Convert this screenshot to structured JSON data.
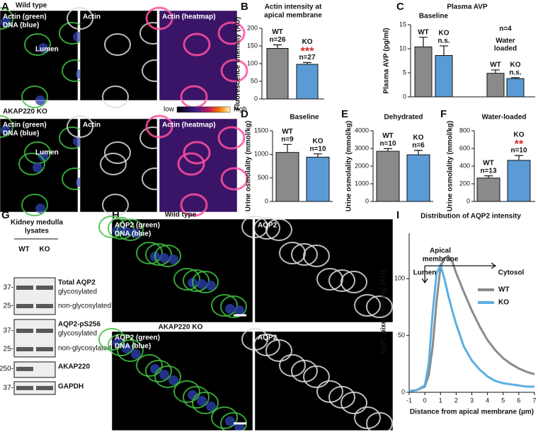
{
  "figure": {
    "panel_labels": [
      "A",
      "B",
      "C",
      "D",
      "E",
      "F",
      "G",
      "H",
      "I"
    ],
    "a": {
      "wt_title": "Wild type",
      "ko_title": "AKAP220 KO",
      "merge_label": [
        "Actin (green)",
        "DNA (blue)"
      ],
      "actin_label": "Actin",
      "heatmap_label": "Actin (heatmap)",
      "lumen": "Lumen",
      "scale_low": "low",
      "scale_high": "high"
    },
    "g": {
      "title": [
        "Kidney medulla",
        "lysates"
      ],
      "lanes": [
        "WT",
        "KO"
      ],
      "blots": [
        {
          "label": "Total AQP2",
          "bands": [
            "glycosylated",
            "non-glycosylated"
          ],
          "markers": [
            "37-",
            "25-"
          ]
        },
        {
          "label": "AQP2-pS256",
          "bands": [
            "glycosylated",
            "non-glycosylated"
          ],
          "markers": [
            "37-",
            "25-"
          ]
        },
        {
          "label": "AKAP220",
          "markers": [
            "250-"
          ]
        },
        {
          "label": "GAPDH",
          "markers": [
            "37-"
          ]
        }
      ]
    },
    "h": {
      "wt_title": "Wild type",
      "ko_title": "AKAP220 KO",
      "merge_label": [
        "AQP2 (green)",
        "DNA (blue)"
      ],
      "aqp2_label": "AQP2"
    }
  },
  "chart_data": [
    {
      "type": "bar",
      "title": [
        "Actin intensity at",
        "apical membrane"
      ],
      "ylabel": "Fluorescence intensity (AU)",
      "categories": [
        "WT",
        "KO"
      ],
      "values": [
        143,
        98
      ],
      "errors": [
        10,
        5
      ],
      "colors": [
        "#8a8a8a",
        "#5b9bd5"
      ],
      "n_labels": [
        "n=26",
        "n=27"
      ],
      "significance": [
        null,
        "***"
      ],
      "significance_color": "#d62728",
      "ylim": [
        0,
        200
      ],
      "yticks": [
        0,
        50,
        100,
        150,
        200
      ]
    },
    {
      "type": "bar",
      "title": [
        "Plasma AVP"
      ],
      "ylabel": "Plasma AVP (pg/ml)",
      "categories": [
        "WT",
        "KO",
        "WT",
        "KO"
      ],
      "values": [
        10.4,
        8.6,
        4.9,
        3.8
      ],
      "errors": [
        2,
        2,
        0.7,
        0.2
      ],
      "colors": [
        "#8a8a8a",
        "#5b9bd5",
        "#8a8a8a",
        "#5b9bd5"
      ],
      "group_labels": [
        [
          "Baseline"
        ],
        [
          "Water",
          "loaded"
        ]
      ],
      "note": "n=4",
      "significance": [
        null,
        "n.s.",
        null,
        "n.s."
      ],
      "significance_color": "#111111",
      "ylim": [
        0,
        15
      ],
      "yticks": [
        0,
        5,
        10,
        15
      ]
    },
    {
      "type": "bar",
      "title": [
        "Baseline"
      ],
      "ylabel": "Urine osmolality (mmol/kg)",
      "categories": [
        "WT",
        "KO"
      ],
      "values": [
        1040,
        940
      ],
      "errors": [
        170,
        70
      ],
      "colors": [
        "#8a8a8a",
        "#5b9bd5"
      ],
      "n_labels": [
        "n=9",
        "n=10"
      ],
      "ylim": [
        0,
        1500
      ],
      "yticks": [
        0,
        500,
        1000,
        1500
      ]
    },
    {
      "type": "bar",
      "title": [
        "Dehydrated"
      ],
      "ylabel": "Urine osmolality (mmol/kg)",
      "categories": [
        "WT",
        "KO"
      ],
      "values": [
        2840,
        2640
      ],
      "errors": [
        150,
        250
      ],
      "colors": [
        "#8a8a8a",
        "#5b9bd5"
      ],
      "n_labels": [
        "n=10",
        "n=6"
      ],
      "ylim": [
        0,
        4000
      ],
      "yticks": [
        0,
        1000,
        2000,
        3000,
        4000
      ]
    },
    {
      "type": "bar",
      "title": [
        "Water-loaded"
      ],
      "ylabel": "Urine osmolality (mmol/kg)",
      "categories": [
        "WT",
        "KO"
      ],
      "values": [
        265,
        465
      ],
      "errors": [
        25,
        55
      ],
      "colors": [
        "#8a8a8a",
        "#5b9bd5"
      ],
      "n_labels": [
        "n=13",
        "n=10"
      ],
      "significance": [
        null,
        "**"
      ],
      "significance_color": "#d62728",
      "ylim": [
        0,
        800
      ],
      "yticks": [
        0,
        200,
        400,
        600,
        800
      ]
    },
    {
      "type": "line",
      "title": "Distribution of AQP2 intensity",
      "xlabel": "Distance from apical membrane (µm)",
      "ylabel": "AQP2 pixel intensity (AU)",
      "x": [
        -1,
        -0.5,
        0,
        0.25,
        0.5,
        0.75,
        1,
        1.25,
        1.5,
        1.75,
        2,
        2.5,
        3,
        3.5,
        4,
        4.5,
        5,
        5.5,
        6,
        6.5,
        7
      ],
      "series": [
        {
          "name": "WT",
          "color": "#8a8a8a",
          "values": [
            1,
            2,
            5,
            15,
            40,
            80,
            110,
            118,
            120,
            115,
            105,
            88,
            72,
            58,
            46,
            37,
            30,
            25,
            21,
            18,
            16
          ]
        },
        {
          "name": "KO",
          "color": "#5bafe0",
          "values": [
            1,
            2,
            6,
            25,
            70,
            105,
            112,
            100,
            85,
            72,
            60,
            40,
            28,
            20,
            14,
            10,
            8,
            7,
            6,
            5,
            5
          ]
        }
      ],
      "annotations": {
        "apical": [
          "Apical",
          "membrane"
        ],
        "lumen": "Lumen",
        "cytosol": "Cytosol"
      },
      "xlim": [
        -1,
        7
      ],
      "xticks": [
        -1,
        0,
        1,
        2,
        3,
        4,
        5,
        6,
        7
      ],
      "ylim": [
        0,
        140
      ],
      "yticks": [
        0,
        50,
        100
      ]
    }
  ]
}
